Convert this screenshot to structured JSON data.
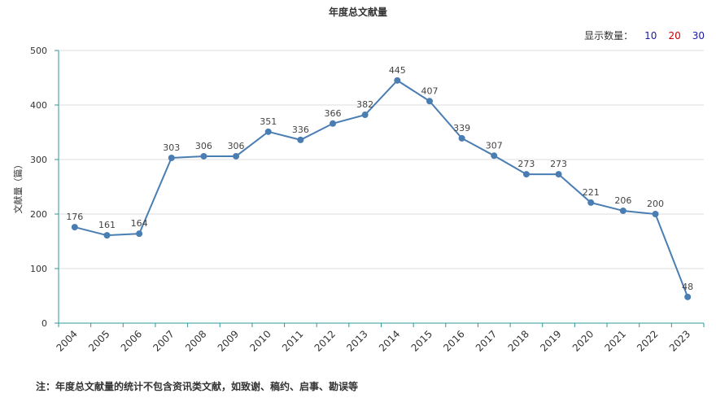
{
  "title": "年度总文献量",
  "count_selector": {
    "label": "显示数量：",
    "options": [
      {
        "label": "10",
        "color": "#1a1aa6"
      },
      {
        "label": "20",
        "color": "#cc0000"
      },
      {
        "label": "30",
        "color": "#1a1aa6"
      }
    ]
  },
  "footnote": "注：年度总文献量的统计不包含资讯类文献，如致谢、稿约、启事、勘误等",
  "chart_data": {
    "type": "line",
    "title": "年度总文献量",
    "ylabel": "文献量（篇）",
    "xlabel": "",
    "ylim": [
      0,
      500
    ],
    "yticks": [
      0,
      100,
      200,
      300,
      400,
      500
    ],
    "categories": [
      "2004",
      "2005",
      "2006",
      "2007",
      "2008",
      "2009",
      "2010",
      "2011",
      "2012",
      "2013",
      "2014",
      "2015",
      "2016",
      "2017",
      "2018",
      "2019",
      "2020",
      "2021",
      "2022",
      "2023"
    ],
    "series": [
      {
        "values": [
          176,
          161,
          164,
          303,
          306,
          306,
          351,
          336,
          366,
          382,
          445,
          407,
          339,
          307,
          273,
          273,
          221,
          206,
          200,
          48
        ]
      }
    ],
    "line_color": "#4a7eb3",
    "axis_color": "#2f9a96",
    "grid": true
  }
}
